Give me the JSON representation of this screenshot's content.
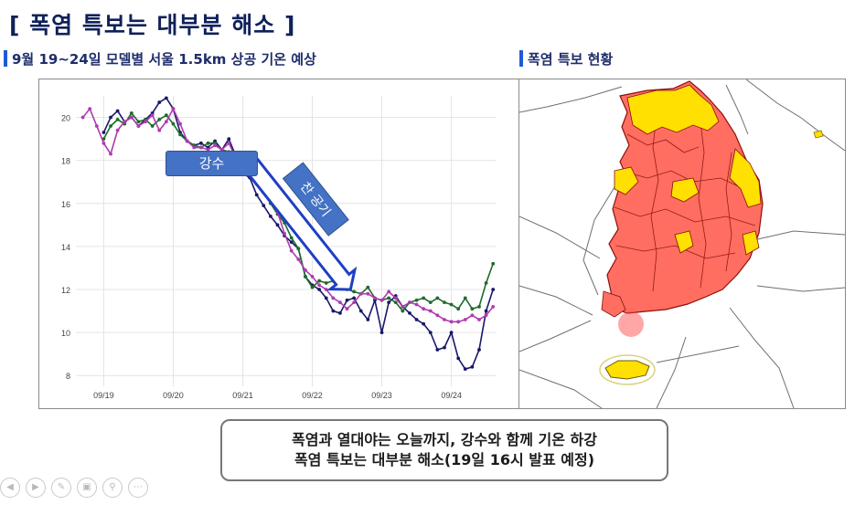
{
  "page": {
    "title": "[ 폭염 특보는 대부분 해소 ]",
    "section_chart": "9월 19~24일 모델별 서울 1.5km 상공 기온 예상",
    "section_map": "폭염 특보 현황",
    "summary_line1": "폭염과 열대야는 오늘까지, 강수와 함께 기온 하강",
    "summary_line2": "폭염 특보는 대부분 해소(19일 16시 발표 예정)",
    "controls": [
      "prev-icon",
      "play-icon",
      "pen-icon",
      "screen-icon",
      "zoom-icon",
      "more-icon"
    ]
  },
  "chart_data": {
    "type": "line",
    "xlabel": "",
    "ylabel": "",
    "ylim": [
      7.5,
      21
    ],
    "xlim": [
      18.6,
      24.65
    ],
    "yticks": [
      "20",
      "18",
      "16",
      "14",
      "12",
      "10",
      "8"
    ],
    "xticks": [
      "09/19",
      "09/20",
      "09/21",
      "09/22",
      "09/23",
      "09/24"
    ],
    "colors": {
      "navy": "#18186a",
      "green": "#1f6b2a",
      "magenta": "#b03ab0"
    },
    "annotations": {
      "rain": "강수",
      "cold_air": "찬 공기"
    },
    "series": [
      {
        "color": "navy",
        "x": [
          19.0,
          19.1,
          19.2,
          19.3,
          19.4,
          19.5,
          19.6,
          19.7,
          19.8,
          19.9,
          20.0,
          20.1,
          20.2,
          20.3,
          20.4,
          20.5,
          20.6,
          20.7,
          20.8,
          20.9,
          21.0,
          21.1,
          21.2,
          21.3,
          21.4,
          21.5,
          21.6,
          21.7,
          21.8,
          21.9,
          22.0,
          22.1,
          22.2,
          22.3,
          22.4,
          22.5,
          22.6,
          22.7,
          22.8,
          22.9,
          23.0,
          23.1,
          23.2,
          23.3,
          23.4,
          23.5,
          23.6,
          23.7,
          23.8,
          23.9,
          24.0,
          24.1,
          24.2,
          24.3,
          24.4,
          24.5,
          24.6
        ],
        "y": [
          19.3,
          20.0,
          20.3,
          19.8,
          20.0,
          19.6,
          19.9,
          20.2,
          20.7,
          20.9,
          20.4,
          19.3,
          18.9,
          18.7,
          18.8,
          18.6,
          18.9,
          18.5,
          19.0,
          18.2,
          17.4,
          17.2,
          16.4,
          15.9,
          15.4,
          15.0,
          14.5,
          14.2,
          13.9,
          12.6,
          12.2,
          12.0,
          11.6,
          11.0,
          10.9,
          11.5,
          11.6,
          11.0,
          10.6,
          11.5,
          10.0,
          11.4,
          11.7,
          11.2,
          10.9,
          10.6,
          10.4,
          10.0,
          9.2,
          9.3,
          10.0,
          8.8,
          8.3,
          8.4,
          9.2,
          11.0,
          12.0
        ]
      },
      {
        "color": "green",
        "x": [
          19.0,
          19.1,
          19.2,
          19.3,
          19.4,
          19.5,
          19.6,
          19.7,
          19.8,
          19.9,
          20.0,
          20.1,
          20.2,
          20.3,
          20.4,
          20.5,
          20.6,
          20.7,
          20.8,
          20.9,
          21.0,
          21.1,
          21.2,
          21.3,
          21.4,
          21.5,
          21.6,
          21.7,
          21.8,
          21.9,
          22.0,
          22.1,
          22.2,
          22.3,
          22.4,
          22.5,
          22.6,
          22.7,
          22.8,
          22.9,
          23.0,
          23.1,
          23.2,
          23.3,
          23.4,
          23.5,
          23.6,
          23.7,
          23.8,
          23.9,
          24.0,
          24.1,
          24.2,
          24.3,
          24.4,
          24.5,
          24.6
        ],
        "y": [
          19.0,
          19.6,
          19.9,
          19.7,
          20.2,
          19.8,
          19.9,
          19.6,
          19.9,
          20.1,
          19.7,
          19.2,
          18.9,
          18.7,
          18.6,
          18.8,
          18.8,
          18.5,
          18.4,
          18.3,
          17.7,
          17.4,
          16.9,
          16.5,
          16.0,
          15.5,
          15.1,
          14.4,
          13.9,
          12.6,
          12.1,
          12.4,
          12.3,
          12.4,
          12.3,
          12.0,
          11.9,
          11.8,
          12.1,
          11.6,
          11.5,
          11.6,
          11.4,
          11.0,
          11.4,
          11.5,
          11.6,
          11.4,
          11.6,
          11.4,
          11.3,
          11.1,
          11.6,
          11.1,
          11.2,
          12.3,
          13.2
        ]
      },
      {
        "color": "magenta",
        "x": [
          18.7,
          18.8,
          18.9,
          19.0,
          19.1,
          19.2,
          19.3,
          19.4,
          19.5,
          19.6,
          19.7,
          19.8,
          19.9,
          20.0,
          20.1,
          20.2,
          20.3,
          20.4,
          20.5,
          20.6,
          20.7,
          20.8,
          20.9,
          21.0,
          21.1,
          21.2,
          21.3,
          21.4,
          21.5,
          21.6,
          21.7,
          21.8,
          21.9,
          22.0,
          22.1,
          22.2,
          22.3,
          22.4,
          22.5,
          22.6,
          22.7,
          22.8,
          22.9,
          23.0,
          23.1,
          23.2,
          23.3,
          23.4,
          23.5,
          23.6,
          23.7,
          23.8,
          23.9,
          24.0,
          24.1,
          24.2,
          24.3,
          24.4,
          24.5,
          24.6
        ],
        "y": [
          20.0,
          20.4,
          19.6,
          18.8,
          18.3,
          19.4,
          19.8,
          20.0,
          19.6,
          19.8,
          20.1,
          19.4,
          19.8,
          20.4,
          19.7,
          18.9,
          18.6,
          18.6,
          18.5,
          18.7,
          18.5,
          18.8,
          18.1,
          18.2,
          17.6,
          17.2,
          16.9,
          16.5,
          15.6,
          14.6,
          13.8,
          13.4,
          12.9,
          12.6,
          12.2,
          12.0,
          11.6,
          11.4,
          11.1,
          11.4,
          11.8,
          11.8,
          11.6,
          11.5,
          11.9,
          11.6,
          11.2,
          11.4,
          11.3,
          11.1,
          11.0,
          10.8,
          10.6,
          10.5,
          10.5,
          10.6,
          10.8,
          10.6,
          10.8,
          11.2
        ]
      }
    ]
  }
}
